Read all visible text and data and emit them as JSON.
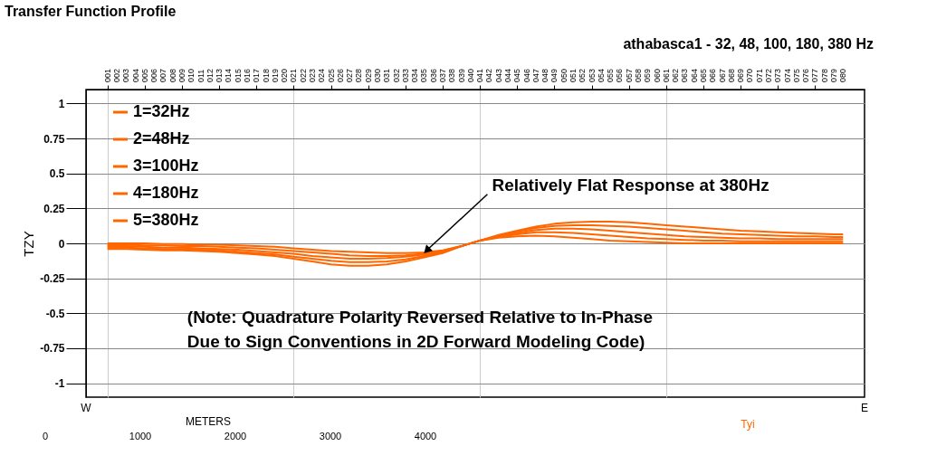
{
  "chart_data": {
    "type": "line",
    "title": "Transfer Function Profile",
    "subtitle": "athabasca1 - 32, 48, 100, 180, 380 Hz",
    "ylabel": "TZY",
    "xlabel": "METERS",
    "x": [
      1,
      3,
      5,
      7,
      9,
      11,
      13,
      15,
      17,
      19,
      21,
      23,
      25,
      27,
      29,
      31,
      33,
      35,
      37,
      39,
      41,
      43,
      45,
      47,
      49,
      51,
      53,
      55,
      57,
      59,
      61,
      63,
      65,
      67,
      69,
      71,
      73,
      75,
      77,
      79,
      80
    ],
    "series": [
      {
        "name": "1=32Hz",
        "color": "#ff6600",
        "values": [
          -0.04,
          -0.04,
          -0.045,
          -0.05,
          -0.05,
          -0.055,
          -0.06,
          -0.07,
          -0.08,
          -0.09,
          -0.11,
          -0.13,
          -0.15,
          -0.16,
          -0.16,
          -0.15,
          -0.13,
          -0.1,
          -0.07,
          -0.02,
          0.02,
          0.06,
          0.09,
          0.12,
          0.14,
          0.15,
          0.155,
          0.155,
          0.15,
          0.14,
          0.13,
          0.12,
          0.11,
          0.1,
          0.09,
          0.085,
          0.08,
          0.075,
          0.07,
          0.065,
          0.065
        ]
      },
      {
        "name": "2=48Hz",
        "color": "#ff6600",
        "values": [
          -0.03,
          -0.03,
          -0.035,
          -0.04,
          -0.04,
          -0.045,
          -0.05,
          -0.06,
          -0.07,
          -0.08,
          -0.095,
          -0.11,
          -0.125,
          -0.135,
          -0.135,
          -0.13,
          -0.115,
          -0.09,
          -0.065,
          -0.02,
          0.02,
          0.055,
          0.085,
          0.11,
          0.125,
          0.13,
          0.13,
          0.125,
          0.12,
          0.11,
          0.1,
          0.09,
          0.08,
          0.07,
          0.065,
          0.06,
          0.055,
          0.05,
          0.05,
          0.045,
          0.045
        ]
      },
      {
        "name": "3=100Hz",
        "color": "#ff6600",
        "values": [
          -0.02,
          -0.02,
          -0.025,
          -0.03,
          -0.03,
          -0.035,
          -0.04,
          -0.045,
          -0.055,
          -0.065,
          -0.075,
          -0.09,
          -0.1,
          -0.11,
          -0.11,
          -0.105,
          -0.095,
          -0.08,
          -0.06,
          -0.02,
          0.02,
          0.05,
          0.075,
          0.095,
          0.105,
          0.105,
          0.1,
          0.09,
          0.08,
          0.07,
          0.06,
          0.05,
          0.045,
          0.04,
          0.035,
          0.035,
          0.03,
          0.03,
          0.03,
          0.03,
          0.03
        ]
      },
      {
        "name": "4=180Hz",
        "color": "#ff6600",
        "values": [
          -0.01,
          -0.01,
          -0.015,
          -0.015,
          -0.02,
          -0.02,
          -0.025,
          -0.03,
          -0.035,
          -0.045,
          -0.055,
          -0.065,
          -0.075,
          -0.085,
          -0.09,
          -0.09,
          -0.085,
          -0.075,
          -0.055,
          -0.02,
          0.02,
          0.045,
          0.065,
          0.08,
          0.08,
          0.075,
          0.065,
          0.055,
          0.045,
          0.035,
          0.03,
          0.025,
          0.02,
          0.02,
          0.015,
          0.015,
          0.015,
          0.015,
          0.015,
          0.015,
          0.015
        ]
      },
      {
        "name": "5=380Hz",
        "color": "#ff6600",
        "values": [
          0,
          0,
          0,
          -0.005,
          -0.005,
          -0.01,
          -0.01,
          -0.015,
          -0.02,
          -0.025,
          -0.035,
          -0.045,
          -0.055,
          -0.06,
          -0.065,
          -0.07,
          -0.07,
          -0.065,
          -0.05,
          -0.02,
          0.02,
          0.04,
          0.05,
          0.055,
          0.05,
          0.04,
          0.03,
          0.02,
          0.015,
          0.01,
          0.005,
          0,
          0,
          0,
          0,
          0,
          0,
          0,
          0,
          0,
          0
        ]
      }
    ],
    "xlim": [
      -1.3,
      82.3
    ],
    "xticks": [
      {
        "value": 1,
        "label": "001"
      },
      {
        "value": 2,
        "label": "002"
      },
      {
        "value": 3,
        "label": "003"
      },
      {
        "value": 4,
        "label": "004"
      },
      {
        "value": 5,
        "label": "005"
      },
      {
        "value": 6,
        "label": "006"
      },
      {
        "value": 7,
        "label": "007"
      },
      {
        "value": 8,
        "label": "008"
      },
      {
        "value": 9,
        "label": "009"
      },
      {
        "value": 10,
        "label": "010"
      },
      {
        "value": 11,
        "label": "011"
      },
      {
        "value": 12,
        "label": "012"
      },
      {
        "value": 13,
        "label": "013"
      },
      {
        "value": 14,
        "label": "014"
      },
      {
        "value": 15,
        "label": "015"
      },
      {
        "value": 16,
        "label": "016"
      },
      {
        "value": 17,
        "label": "017"
      },
      {
        "value": 18,
        "label": "018"
      },
      {
        "value": 19,
        "label": "019"
      },
      {
        "value": 20,
        "label": "020"
      },
      {
        "value": 21,
        "label": "021"
      },
      {
        "value": 22,
        "label": "022"
      },
      {
        "value": 23,
        "label": "023"
      },
      {
        "value": 24,
        "label": "024"
      },
      {
        "value": 25,
        "label": "025"
      },
      {
        "value": 26,
        "label": "026"
      },
      {
        "value": 27,
        "label": "027"
      },
      {
        "value": 28,
        "label": "028"
      },
      {
        "value": 29,
        "label": "029"
      },
      {
        "value": 30,
        "label": "030"
      },
      {
        "value": 31,
        "label": "031"
      },
      {
        "value": 32,
        "label": "032"
      },
      {
        "value": 33,
        "label": "033"
      },
      {
        "value": 34,
        "label": "034"
      },
      {
        "value": 35,
        "label": "035"
      },
      {
        "value": 36,
        "label": "036"
      },
      {
        "value": 37,
        "label": "037"
      },
      {
        "value": 38,
        "label": "038"
      },
      {
        "value": 39,
        "label": "039"
      },
      {
        "value": 40,
        "label": "040"
      },
      {
        "value": 41,
        "label": "041"
      },
      {
        "value": 42,
        "label": "042"
      },
      {
        "value": 43,
        "label": "043"
      },
      {
        "value": 44,
        "label": "044"
      },
      {
        "value": 45,
        "label": "045"
      },
      {
        "value": 46,
        "label": "046"
      },
      {
        "value": 47,
        "label": "047"
      },
      {
        "value": 48,
        "label": "048"
      },
      {
        "value": 49,
        "label": "049"
      },
      {
        "value": 50,
        "label": "050"
      },
      {
        "value": 51,
        "label": "051"
      },
      {
        "value": 52,
        "label": "052"
      },
      {
        "value": 53,
        "label": "053"
      },
      {
        "value": 54,
        "label": "054"
      },
      {
        "value": 55,
        "label": "055"
      },
      {
        "value": 56,
        "label": "056"
      },
      {
        "value": 57,
        "label": "057"
      },
      {
        "value": 58,
        "label": "058"
      },
      {
        "value": 59,
        "label": "059"
      },
      {
        "value": 60,
        "label": "060"
      },
      {
        "value": 61,
        "label": "061"
      },
      {
        "value": 62,
        "label": "062"
      },
      {
        "value": 63,
        "label": "063"
      },
      {
        "value": 64,
        "label": "064"
      },
      {
        "value": 65,
        "label": "065"
      },
      {
        "value": 66,
        "label": "066"
      },
      {
        "value": 67,
        "label": "067"
      },
      {
        "value": 68,
        "label": "068"
      },
      {
        "value": 69,
        "label": "069"
      },
      {
        "value": 70,
        "label": "070"
      },
      {
        "value": 71,
        "label": "071"
      },
      {
        "value": 72,
        "label": "072"
      },
      {
        "value": 73,
        "label": "073"
      },
      {
        "value": 74,
        "label": "074"
      },
      {
        "value": 75,
        "label": "075"
      },
      {
        "value": 76,
        "label": "076"
      },
      {
        "value": 77,
        "label": "077"
      },
      {
        "value": 78,
        "label": "078"
      },
      {
        "value": 79,
        "label": "079"
      },
      {
        "value": 80,
        "label": "080"
      }
    ],
    "ylim": [
      -1.1,
      1.1
    ],
    "yticks": [
      -1,
      -0.75,
      -0.5,
      -0.25,
      0,
      0.25,
      0.5,
      0.75,
      1
    ],
    "marker": "none",
    "grid": true,
    "legend": "top left",
    "line_style": "solid",
    "annotations": [
      {
        "text": "Relatively Flat Response at 380Hz",
        "x": 35,
        "y": -0.07
      },
      "(Note: Quadrature Polarity Reversed Relative to In-Phase\nDue to Sign Conventions in 2D Forward Modeling Code)",
      "W",
      "E",
      "Tyi",
      "0",
      "1000",
      "2000",
      "3000",
      "4000"
    ]
  }
}
